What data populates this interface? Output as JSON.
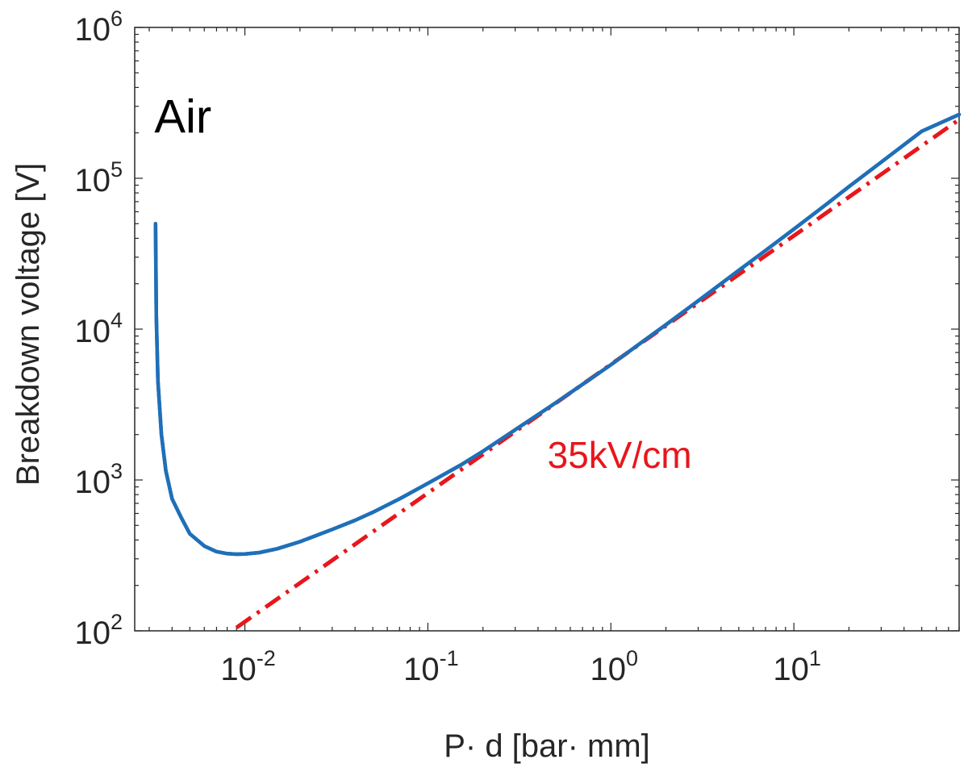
{
  "chart_data": {
    "type": "line",
    "x_scale": "log",
    "y_scale": "log",
    "xlim": [
      0.0025,
      80
    ],
    "ylim": [
      100,
      1000000
    ],
    "xlabel": "P· d [bar· mm]",
    "ylabel": "Breakdown voltage [V]",
    "x_ticks": [
      {
        "value": 0.01,
        "base": "10",
        "exp": "-2"
      },
      {
        "value": 0.1,
        "base": "10",
        "exp": "-1"
      },
      {
        "value": 1,
        "base": "10",
        "exp": "0"
      },
      {
        "value": 10,
        "base": "10",
        "exp": "1"
      }
    ],
    "y_ticks": [
      {
        "value": 100,
        "base": "10",
        "exp": "2"
      },
      {
        "value": 1000,
        "base": "10",
        "exp": "3"
      },
      {
        "value": 10000,
        "base": "10",
        "exp": "4"
      },
      {
        "value": 100000,
        "base": "10",
        "exp": "5"
      },
      {
        "value": 1000000,
        "base": "10",
        "exp": "6"
      }
    ],
    "grid": false,
    "annotations": [
      {
        "text": "Air",
        "x": 0.0032,
        "y": 200000,
        "color": "#000000"
      },
      {
        "text": "35kV/cm",
        "x": 0.45,
        "y": 1200,
        "color": "#e8161b"
      }
    ],
    "series": [
      {
        "style": "solid",
        "color": "#1f6fb8",
        "x": [
          0.00325,
          0.00328,
          0.00335,
          0.0035,
          0.0037,
          0.004,
          0.0045,
          0.005,
          0.006,
          0.007,
          0.008,
          0.009,
          0.01,
          0.012,
          0.015,
          0.02,
          0.03,
          0.04,
          0.05,
          0.07,
          0.1,
          0.15,
          0.2,
          0.3,
          0.5,
          0.7,
          1,
          1.5,
          2,
          3,
          5,
          7,
          10,
          15,
          20,
          30,
          50,
          80
        ],
        "y": [
          50000,
          12000,
          4500,
          2000,
          1150,
          750,
          560,
          440,
          365,
          335,
          325,
          322,
          323,
          330,
          350,
          390,
          470,
          540,
          610,
          750,
          950,
          1250,
          1550,
          2150,
          3250,
          4300,
          5800,
          8300,
          10700,
          15400,
          24500,
          33200,
          46000,
          67000,
          88000,
          128000,
          205000,
          265000
        ]
      },
      {
        "style": "dash-dot",
        "color": "#e8161b",
        "x": [
          0.009,
          80
        ],
        "y": [
          105,
          245000
        ]
      }
    ]
  }
}
